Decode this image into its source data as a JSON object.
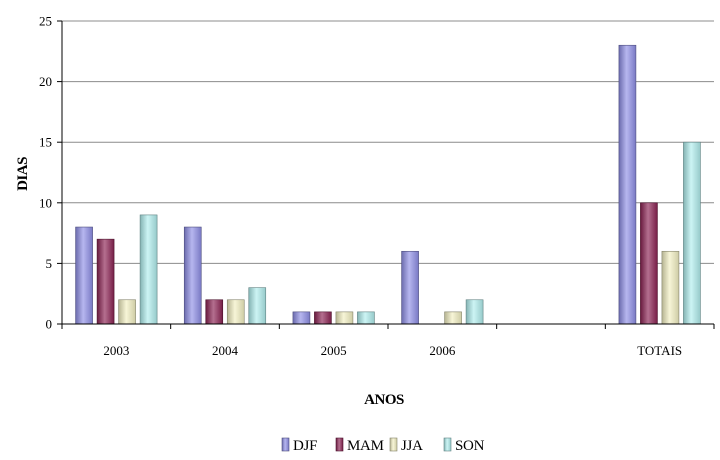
{
  "chart_data": {
    "type": "bar",
    "title": "",
    "xlabel": "ANOS",
    "ylabel": "DIAS",
    "categories": [
      "2003",
      "2004",
      "2005",
      "2006",
      "",
      "TOTAIS"
    ],
    "series": [
      {
        "name": "DJF",
        "color": "#8E8EE6",
        "values": [
          8,
          8,
          1,
          6,
          0,
          23
        ]
      },
      {
        "name": "MAM",
        "color": "#8B2252",
        "values": [
          7,
          2,
          1,
          0,
          0,
          10
        ]
      },
      {
        "name": "JJA",
        "color": "#F2F0C2",
        "values": [
          2,
          2,
          1,
          1,
          0,
          6
        ]
      },
      {
        "name": "SON",
        "color": "#B0EEEE",
        "values": [
          9,
          3,
          1,
          2,
          0,
          15
        ]
      }
    ],
    "ylim": [
      0,
      25
    ],
    "yticks": [
      0,
      5,
      10,
      15,
      20,
      25
    ],
    "grid": true,
    "legend_position": "bottom"
  }
}
